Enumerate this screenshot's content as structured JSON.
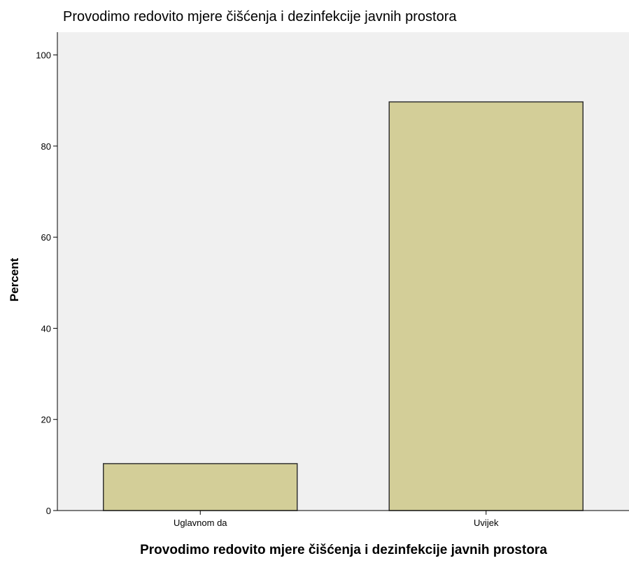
{
  "chart_data": {
    "type": "bar",
    "title": "Provodimo redovito mjere čišćenja i dezinfekcije  javnih prostora",
    "xlabel": "Provodimo redovito mjere čišćenja i dezinfekcije  javnih prostora",
    "ylabel": "Percent",
    "categories": [
      "Uglavnom da",
      "Uvijek"
    ],
    "values": [
      10.3,
      89.7
    ],
    "ylim": [
      0,
      105
    ],
    "yticks": [
      "0",
      "20",
      "40",
      "60",
      "80",
      "100"
    ],
    "grid": false,
    "legend": "none",
    "colors": {
      "plot_background": "#f0f0f0",
      "bar_fill": "#d3ce98",
      "bar_stroke": "#333333",
      "axis": "#000000"
    }
  }
}
